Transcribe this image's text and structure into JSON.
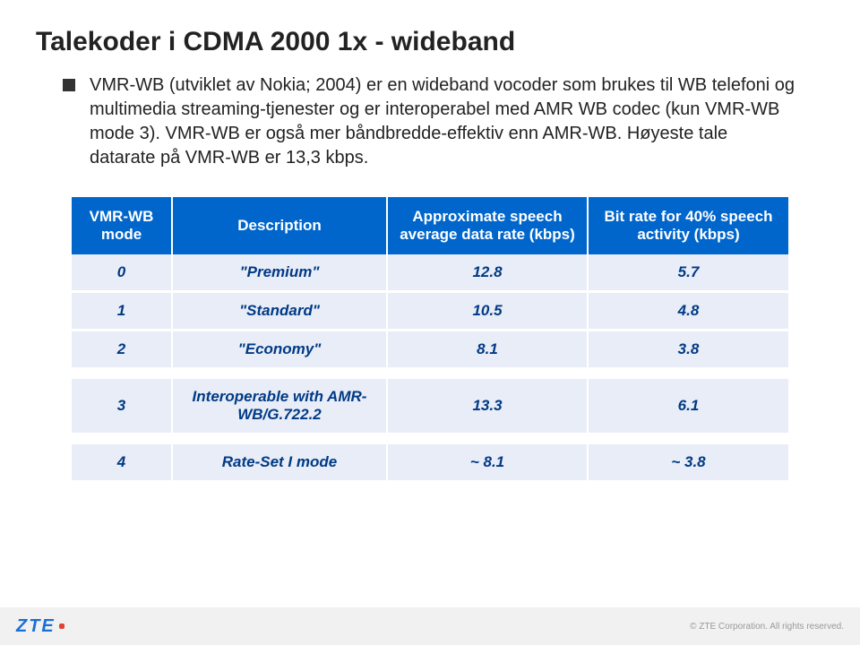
{
  "title": "Talekoder i CDMA 2000 1x - wideband",
  "body_text": "VMR-WB (utviklet av Nokia; 2004) er en wideband vocoder som brukes til WB telefoni og multimedia streaming-tjenester og er interoperabel med AMR WB codec (kun VMR-WB mode 3). VMR-WB er også mer båndbredde-effektiv enn AMR-WB. Høyeste tale datarate på VMR-WB er 13,3 kbps.",
  "table": {
    "header": {
      "c0": "VMR-WB mode",
      "c1": "Description",
      "c2": "Approximate speech average data rate (kbps)",
      "c3": "Bit rate for 40% speech activity (kbps)"
    },
    "header_bg": "#0066cc",
    "header_color": "#ffffff",
    "cell_bg": "#e9edf7",
    "cell_color": "#003a86",
    "rows": [
      {
        "mode": "0",
        "desc": "\"Premium\"",
        "rate": "12.8",
        "bit": "5.7"
      },
      {
        "mode": "1",
        "desc": "\"Standard\"",
        "rate": "10.5",
        "bit": "4.8"
      },
      {
        "mode": "2",
        "desc": "\"Economy\"",
        "rate": "8.1",
        "bit": "3.8"
      },
      {
        "mode": "3",
        "desc": "Interoperable with AMR-WB/G.722.2",
        "rate": "13.3",
        "bit": "6.1"
      },
      {
        "mode": "4",
        "desc": "Rate-Set I mode",
        "rate": "~ 8.1",
        "bit": "~ 3.8"
      }
    ]
  },
  "footer": {
    "logo_text": "ZTE",
    "copyright": "© ZTE Corporation. All rights reserved."
  }
}
